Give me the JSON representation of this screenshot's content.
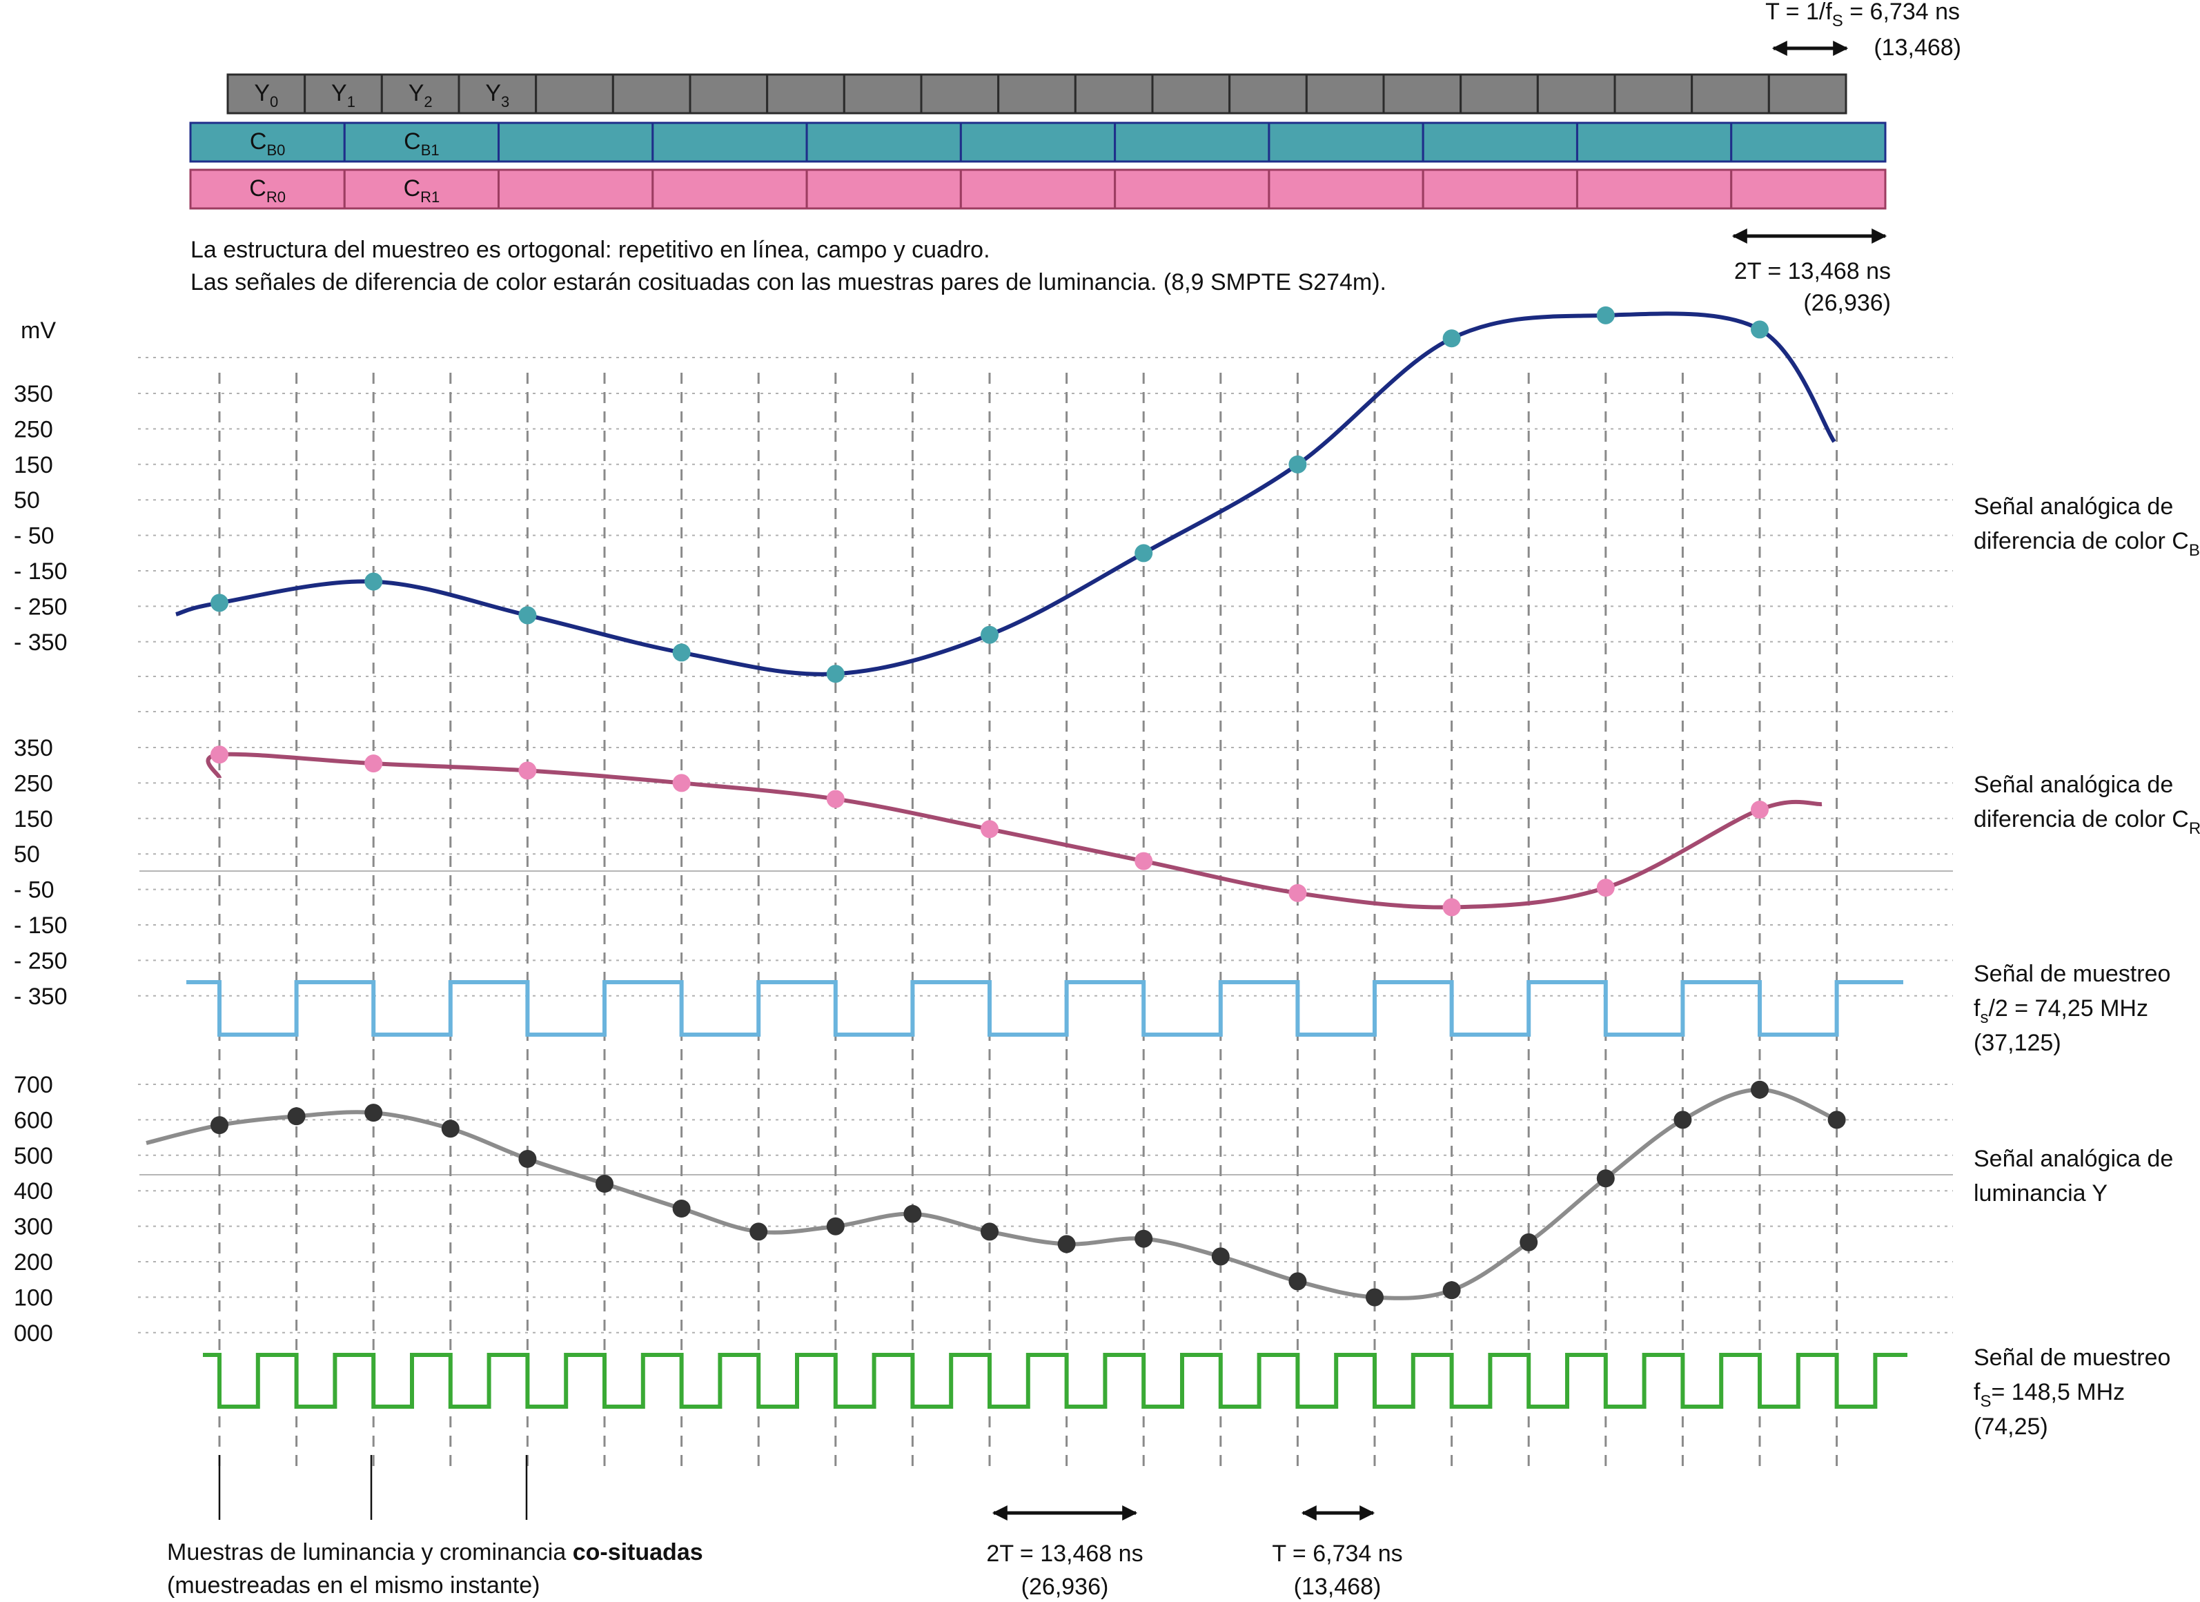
{
  "colors": {
    "cb_curve": "#1a2a80",
    "cb_point": "#46a3ac",
    "cr_curve": "#a44a70",
    "cr_point": "#ec86b8",
    "y_curve": "#8c8c8c",
    "y_point": "#333333",
    "clock_half": "#6ab4dd",
    "clock_full": "#3aaa35",
    "y_row": "#808080",
    "cb_row": "#4aa3ad",
    "cr_row": "#ee87b4"
  },
  "sample_rows": {
    "y": {
      "labels": [
        {
          "base": "Y",
          "sub": "0"
        },
        {
          "base": "Y",
          "sub": "1"
        },
        {
          "base": "Y",
          "sub": "2"
        },
        {
          "base": "Y",
          "sub": "3"
        }
      ],
      "cell_count": 21
    },
    "cb": {
      "labels": [
        {
          "base": "C",
          "sub": "B0"
        },
        {
          "base": "C",
          "sub": "B1"
        }
      ],
      "cell_count": 11
    },
    "cr": {
      "labels": [
        {
          "base": "C",
          "sub": "R0"
        },
        {
          "base": "C",
          "sub": "R1"
        }
      ],
      "cell_count": 11
    }
  },
  "top_annotation": {
    "line1_pre": "T = 1/f",
    "line1_sub": "S",
    "line1_post": " = 6,734 ns",
    "line2": "(13,468)"
  },
  "structure_note": {
    "line1": "La estructura del muestreo es ortogonal: repetitivo en línea, campo y cuadro.",
    "line2": "Las señales de diferencia de color estarán cosituadas con las muestras pares de luminancia. (8,9 SMPTE S274m)."
  },
  "two_t_top": {
    "line1": "2T = 13,468 ns",
    "line2": "(26,936)"
  },
  "unit_label": "mV",
  "cb_panel": {
    "ticks": [
      "350",
      "250",
      "150",
      "50",
      "- 50",
      "- 150",
      "- 250",
      "- 350"
    ],
    "label_line1": "Señal analógica de",
    "label_line2_pre": "diferencia de color C",
    "label_line2_sub": "B",
    "samples": [
      -240,
      -180,
      -275,
      -380,
      -440,
      -330,
      -100,
      150,
      505,
      570,
      530
    ]
  },
  "cr_panel": {
    "ticks": [
      "350",
      "250",
      "150",
      "50",
      "- 50",
      "- 150",
      "- 250",
      "- 350"
    ],
    "label_line1": "Señal analógica de",
    "label_line2_pre": "diferencia de color C",
    "label_line2_sub": "R",
    "samples": [
      330,
      305,
      285,
      250,
      205,
      120,
      30,
      -60,
      -100,
      -45,
      175
    ]
  },
  "clock_half": {
    "line1": "Señal de muestreo",
    "line2_pre": "f",
    "line2_sub": "s",
    "line2_post": "/2 = 74,25 MHz",
    "line3": "(37,125)"
  },
  "y_panel": {
    "ticks": [
      "700",
      "600",
      "500",
      "400",
      "300",
      "200",
      "100",
      "000"
    ],
    "label_line1": "Señal analógica de",
    "label_line2": "luminancia Y",
    "samples": [
      585,
      610,
      620,
      575,
      490,
      420,
      350,
      285,
      300,
      335,
      285,
      250,
      265,
      215,
      145,
      100,
      120,
      255,
      435,
      600,
      685,
      600
    ]
  },
  "clock_full": {
    "line1": "Señal de muestreo",
    "line2_pre": "f",
    "line2_sub": "S",
    "line2_post": "= 148,5 MHz",
    "line3": "(74,25)"
  },
  "cosited_note": {
    "line1_pre": "Muestras de luminancia y crominancia ",
    "line1_bold": "co-situadas",
    "line2": "(muestreadas en el mismo instante)"
  },
  "two_t_bottom": {
    "line1": "2T = 13,468 ns",
    "line2": "(26,936)"
  },
  "t_bottom": {
    "line1": "T = 6,734 ns",
    "line2": "(13,468)"
  }
}
